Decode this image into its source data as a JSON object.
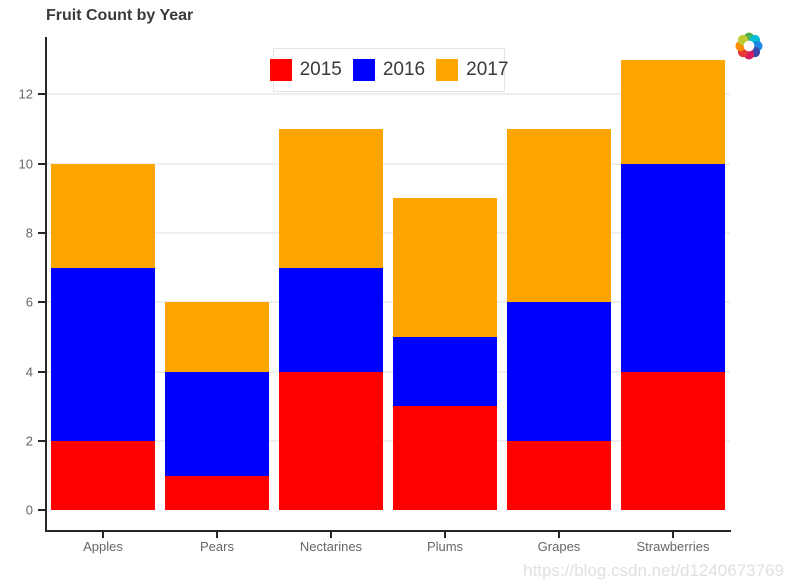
{
  "page": {
    "watermark": "https://blog.csdn.net/d1240673769"
  },
  "chart_data": {
    "type": "bar",
    "stacked": true,
    "title": "Fruit Count by Year",
    "categories": [
      "Apples",
      "Pears",
      "Nectarines",
      "Plums",
      "Grapes",
      "Strawberries"
    ],
    "series": [
      {
        "name": "2015",
        "color": "#ff0000",
        "values": [
          2,
          1,
          4,
          3,
          2,
          4
        ]
      },
      {
        "name": "2016",
        "color": "#0000ff",
        "values": [
          5,
          3,
          3,
          2,
          4,
          6
        ]
      },
      {
        "name": "2017",
        "color": "#ffa500",
        "values": [
          3,
          2,
          4,
          4,
          5,
          3
        ]
      }
    ],
    "stack_totals": [
      10,
      6,
      11,
      9,
      11,
      13
    ],
    "stack_order_bottom_to_top": [
      "2015",
      "2016",
      "2017"
    ],
    "yticks": [
      0,
      2,
      4,
      6,
      8,
      10,
      12
    ],
    "ylim": [
      -0.6,
      13.65
    ],
    "xlabel": "",
    "ylabel": "",
    "grid": "horizontal",
    "legend_position": "top-center"
  },
  "icon": {
    "name": "colorful-pinwheel-logo",
    "petal_colors": [
      "#4caf50",
      "#00bcd4",
      "#1e88e5",
      "#3949ab",
      "#d81b60",
      "#e53935",
      "#fb8c00",
      "#c0ca33"
    ]
  },
  "style_colors": {
    "axis_line": "#262626",
    "gridline": "#efefef",
    "tick_label": "#666666",
    "title": "#3a3a3a",
    "legend_text": "#3a3a3a",
    "legend_border": "#e6e6e6",
    "watermark": "#e0e0e0",
    "background": "#ffffff"
  }
}
